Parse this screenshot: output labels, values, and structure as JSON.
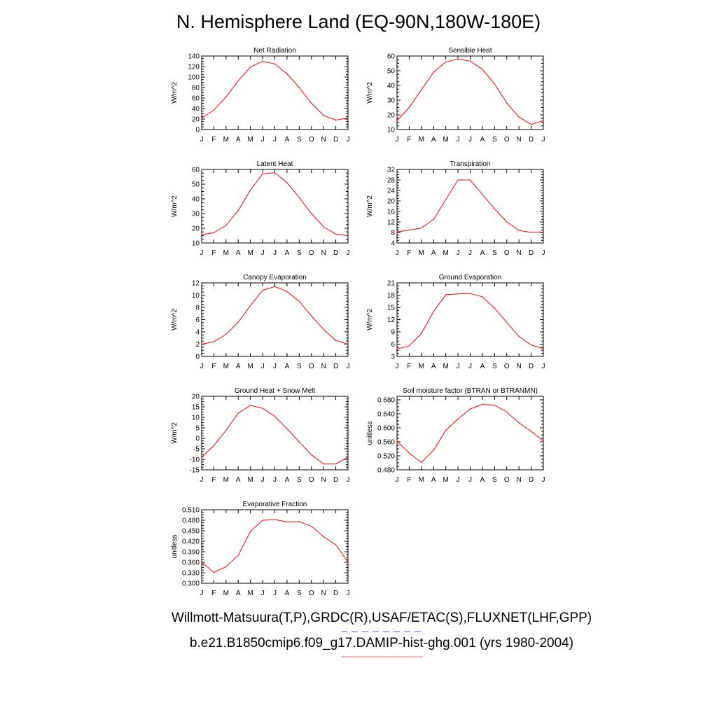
{
  "title": "N. Hemisphere Land (EQ-90N,180W-180E)",
  "legend": {
    "obs_text": "Willmott-Matsuura(T,P),GRDC(R),USAF/ETAC(S),FLUXNET(LHF,GPP)",
    "model_text": "b.e21.B1850cmip6.f09_g17.DAMIP-hist-ghg.001 (yrs 1980-2004)",
    "obs_color": "#5555ee",
    "model_color": "#ff6666"
  },
  "colors": {
    "line": "#ff0000",
    "axis": "#000000"
  },
  "chart_data": [
    {
      "type": "line",
      "title": "Net Radiation",
      "ylabel": "W/m^2",
      "categories": [
        "J",
        "F",
        "M",
        "A",
        "M",
        "J",
        "J",
        "A",
        "S",
        "O",
        "N",
        "D",
        "J"
      ],
      "ylim": [
        0,
        140
      ],
      "yticks": [
        "0",
        "20",
        "40",
        "60",
        "80",
        "100",
        "120",
        "140"
      ],
      "series": [
        {
          "values": [
            22,
            37,
            62,
            93,
            119,
            130,
            125,
            106,
            80,
            50,
            27,
            18,
            22
          ]
        }
      ]
    },
    {
      "type": "line",
      "title": "Sensible Heat",
      "ylabel": "W/m^2",
      "categories": [
        "J",
        "F",
        "M",
        "A",
        "M",
        "J",
        "J",
        "A",
        "S",
        "O",
        "N",
        "D",
        "J"
      ],
      "ylim": [
        10,
        60
      ],
      "yticks": [
        "10",
        "20",
        "30",
        "40",
        "50",
        "60"
      ],
      "series": [
        {
          "values": [
            16,
            25,
            37,
            49,
            56,
            58,
            56.5,
            51,
            41,
            28,
            18.5,
            13.5,
            16
          ]
        }
      ]
    },
    {
      "type": "line",
      "title": "Latent Heat",
      "ylabel": "W/m^2",
      "categories": [
        "J",
        "F",
        "M",
        "A",
        "M",
        "J",
        "J",
        "A",
        "S",
        "O",
        "N",
        "D",
        "J"
      ],
      "ylim": [
        10,
        60
      ],
      "yticks": [
        "10",
        "20",
        "30",
        "40",
        "50",
        "60"
      ],
      "series": [
        {
          "values": [
            15.5,
            17,
            22,
            32,
            46,
            57,
            57.8,
            51,
            41,
            30,
            21,
            16,
            15
          ]
        }
      ]
    },
    {
      "type": "line",
      "title": "Transpiration",
      "ylabel": "W/m^2",
      "categories": [
        "J",
        "F",
        "M",
        "A",
        "M",
        "J",
        "J",
        "A",
        "S",
        "O",
        "N",
        "D",
        "J"
      ],
      "ylim": [
        4,
        32
      ],
      "yticks": [
        "4",
        "8",
        "12",
        "16",
        "20",
        "24",
        "28",
        "32"
      ],
      "series": [
        {
          "values": [
            8.2,
            8.9,
            9.7,
            13,
            20.5,
            28,
            28,
            22.5,
            17,
            12,
            8.8,
            8,
            8.2
          ]
        }
      ]
    },
    {
      "type": "line",
      "title": "Canopy Evaporation",
      "ylabel": "W/m^2",
      "categories": [
        "J",
        "F",
        "M",
        "A",
        "M",
        "J",
        "J",
        "A",
        "S",
        "O",
        "N",
        "D",
        "J"
      ],
      "ylim": [
        0,
        12
      ],
      "yticks": [
        "0",
        "2",
        "4",
        "6",
        "8",
        "10",
        "12"
      ],
      "series": [
        {
          "values": [
            2,
            2.4,
            3.6,
            5.6,
            8.3,
            10.8,
            11.4,
            10.6,
            9,
            6.6,
            4.4,
            2.6,
            2
          ]
        }
      ]
    },
    {
      "type": "line",
      "title": "Ground Evaporation",
      "ylabel": "W/m^2",
      "categories": [
        "J",
        "F",
        "M",
        "A",
        "M",
        "J",
        "J",
        "A",
        "S",
        "O",
        "N",
        "D",
        "J"
      ],
      "ylim": [
        3,
        21
      ],
      "yticks": [
        "3",
        "6",
        "9",
        "12",
        "15",
        "18",
        "21"
      ],
      "series": [
        {
          "values": [
            4.8,
            5.6,
            8.6,
            14,
            18.1,
            18.3,
            18.4,
            17.6,
            14.8,
            11.3,
            7.9,
            5.8,
            4.9
          ]
        }
      ]
    },
    {
      "type": "line",
      "title": "Ground Heat + Snow Melt",
      "ylabel": "W/m^2",
      "categories": [
        "J",
        "F",
        "M",
        "A",
        "M",
        "J",
        "J",
        "A",
        "S",
        "O",
        "N",
        "D",
        "J"
      ],
      "ylim": [
        -15,
        20
      ],
      "yticks": [
        "-15",
        "-10",
        "-5",
        "0",
        "5",
        "10",
        "15",
        "20"
      ],
      "series": [
        {
          "values": [
            -9,
            -3.5,
            3.8,
            12,
            15.7,
            14.3,
            10.5,
            4.6,
            -1.7,
            -7.9,
            -12.2,
            -12.2,
            -9
          ]
        }
      ]
    },
    {
      "type": "line",
      "title": "Soil moisture factor (BTRAN or BTRANMN)",
      "ylabel": "unitless",
      "categories": [
        "J",
        "F",
        "M",
        "A",
        "M",
        "J",
        "J",
        "A",
        "S",
        "O",
        "N",
        "D",
        "J"
      ],
      "ylim": [
        0.48,
        0.69
      ],
      "yticks": [
        "0.480",
        "0.520",
        "0.560",
        "0.600",
        "0.640",
        "0.680"
      ],
      "series": [
        {
          "values": [
            0.562,
            0.528,
            0.501,
            0.536,
            0.593,
            0.625,
            0.654,
            0.667,
            0.665,
            0.645,
            0.614,
            0.59,
            0.562
          ]
        }
      ]
    },
    {
      "type": "line",
      "title": "Evaporative Fraction",
      "ylabel": "unitless",
      "categories": [
        "J",
        "F",
        "M",
        "A",
        "M",
        "J",
        "J",
        "A",
        "S",
        "O",
        "N",
        "D",
        "J"
      ],
      "ylim": [
        0.3,
        0.51
      ],
      "yticks": [
        "0.300",
        "0.330",
        "0.360",
        "0.390",
        "0.420",
        "0.450",
        "0.480",
        "0.510"
      ],
      "series": [
        {
          "values": [
            0.36,
            0.331,
            0.347,
            0.38,
            0.448,
            0.48,
            0.482,
            0.475,
            0.476,
            0.463,
            0.433,
            0.41,
            0.36
          ]
        }
      ]
    }
  ]
}
